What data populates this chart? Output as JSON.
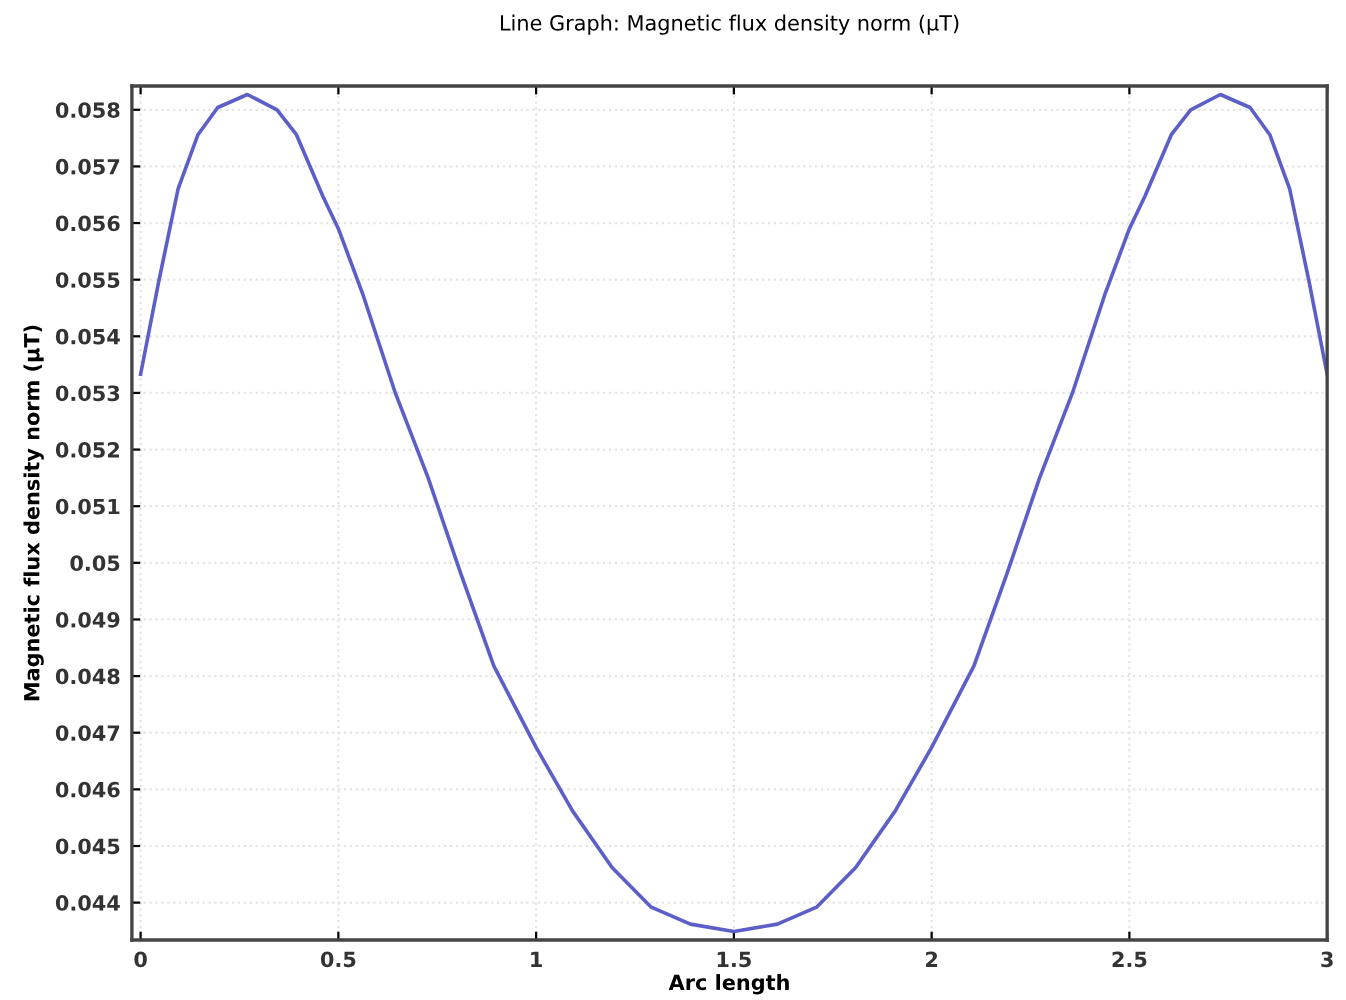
{
  "chart_data": {
    "type": "line",
    "title": "Line Graph: Magnetic flux density norm (µT)",
    "xlabel": "Arc length",
    "ylabel": "Magnetic flux density norm (µT)",
    "x": [
      0,
      0.045,
      0.095,
      0.145,
      0.195,
      0.27,
      0.345,
      0.394,
      0.461,
      0.5,
      0.561,
      0.644,
      0.727,
      0.81,
      0.893,
      1.0,
      1.092,
      1.192,
      1.291,
      1.39,
      1.5,
      1.61,
      1.709,
      1.808,
      1.908,
      2.0,
      2.107,
      2.19,
      2.273,
      2.356,
      2.439,
      2.5,
      2.539,
      2.606,
      2.655,
      2.73,
      2.805,
      2.855,
      2.905,
      2.955,
      3.0
    ],
    "series": [
      {
        "color": "#5b5fc7",
        "values": [
          0.05333,
          0.05494,
          0.05661,
          0.05756,
          0.05804,
          0.05827,
          0.058,
          0.05756,
          0.05647,
          0.0559,
          0.05476,
          0.053,
          0.0515,
          0.0498,
          0.04818,
          0.04674,
          0.04562,
          0.04462,
          0.04392,
          0.04362,
          0.04349,
          0.04362,
          0.04392,
          0.04462,
          0.04562,
          0.04674,
          0.04818,
          0.0498,
          0.0515,
          0.053,
          0.05476,
          0.0559,
          0.05647,
          0.05756,
          0.058,
          0.05827,
          0.05804,
          0.05756,
          0.05661,
          0.05494,
          0.05333
        ]
      }
    ],
    "xlim": [
      -0.022,
      3
    ],
    "ylim": [
      0.04334,
      0.05842
    ],
    "xticks": [
      0,
      0.5,
      1,
      1.5,
      2,
      2.5,
      3
    ],
    "yticks": [
      0.044,
      0.045,
      0.046,
      0.047,
      0.048,
      0.049,
      0.05,
      0.051,
      0.052,
      0.053,
      0.054,
      0.055,
      0.056,
      0.057,
      0.058
    ],
    "grid": true,
    "line_style": "solid",
    "marker": "none"
  }
}
